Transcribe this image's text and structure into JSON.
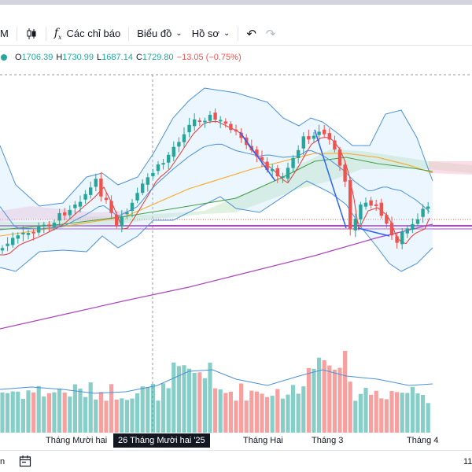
{
  "toolbar": {
    "interval_label": "M",
    "indicators_label": "Các chỉ báo",
    "chart_label": "Biểu đồ",
    "profile_label": "Hồ sơ"
  },
  "legend": {
    "o_label": "O",
    "o_value": "1706.39",
    "h_label": "H",
    "h_value": "1730.99",
    "l_label": "L",
    "l_value": "1687.14",
    "c_label": "C",
    "c_value": "1729.80",
    "change": "−13.05 (−0.75%)"
  },
  "xaxis": {
    "labels": [
      "Tháng Mười hai",
      "Tháng Hai",
      "Tháng 3",
      "Tháng 4"
    ],
    "crosshair_label": "26 Tháng Mười hai '25"
  },
  "bottombar": {
    "left_text": "n",
    "right_text": "11"
  },
  "colors": {
    "up": "#26a69a",
    "down": "#ef5350",
    "ma_fast": "#e53935",
    "ma_slow": "#43a047",
    "ma_mid": "#f9a825",
    "ma_long": "#ab47bc",
    "bollinger": "#4a90d9",
    "trend_line": "#2962ff"
  }
}
